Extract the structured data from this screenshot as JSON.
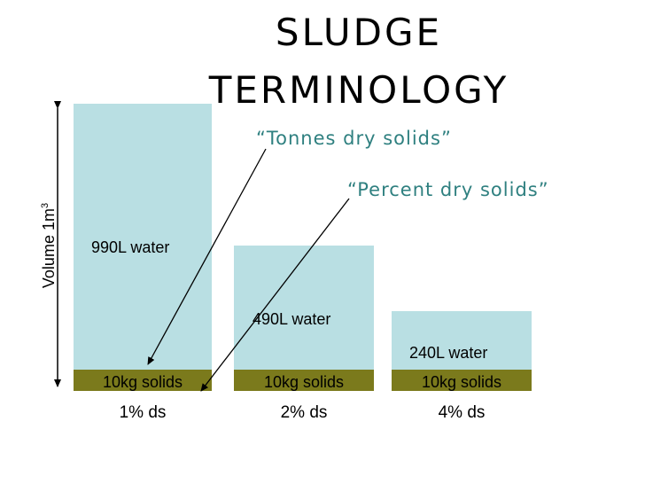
{
  "title": {
    "line1": "SLUDGE",
    "line2": "TERMINOLOGY"
  },
  "callouts": {
    "tonnes": "“Tonnes dry solids”",
    "percent": "“Percent dry solids”"
  },
  "volume_axis": {
    "label": "Volume 1m",
    "superscript": "3"
  },
  "tanks": [
    {
      "water_label": "990L water",
      "solids_label": "10kg solids",
      "ds_label": "1% ds"
    },
    {
      "water_label": "490L water",
      "solids_label": "10kg solids",
      "ds_label": "2% ds"
    },
    {
      "water_label": "240L water",
      "solids_label": "10kg solids",
      "ds_label": "4% ds"
    }
  ],
  "colors": {
    "water": "#b9dfe3",
    "solids": "#7b7a1c",
    "callout_text": "#2f8080"
  }
}
